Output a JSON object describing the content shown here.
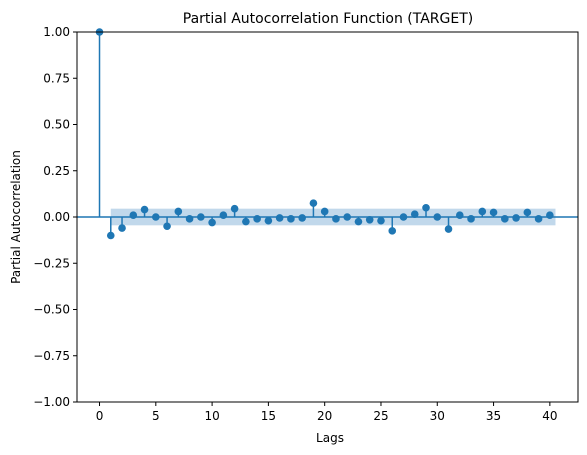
{
  "chart_data": {
    "type": "stem",
    "title": "Partial Autocorrelation Function (TARGET)",
    "xlabel": "Lags",
    "ylabel": "Partial Autocorrelation",
    "xlim": [
      -2,
      42.5
    ],
    "ylim": [
      -1.0,
      1.0
    ],
    "xticks": [
      0,
      5,
      10,
      15,
      20,
      25,
      30,
      35,
      40
    ],
    "yticks": [
      -1.0,
      -0.75,
      -0.5,
      -0.25,
      0.0,
      0.25,
      0.5,
      0.75,
      1.0
    ],
    "ytick_labels": [
      "−1.00",
      "−0.75",
      "−0.50",
      "−0.25",
      "0.00",
      "0.25",
      "0.50",
      "0.75",
      "1.00"
    ],
    "xtick_labels": [
      "0",
      "5",
      "10",
      "15",
      "20",
      "25",
      "30",
      "35",
      "40"
    ],
    "lags": [
      0,
      1,
      2,
      3,
      4,
      5,
      6,
      7,
      8,
      9,
      10,
      11,
      12,
      13,
      14,
      15,
      16,
      17,
      18,
      19,
      20,
      21,
      22,
      23,
      24,
      25,
      26,
      27,
      28,
      29,
      30,
      31,
      32,
      33,
      34,
      35,
      36,
      37,
      38,
      39,
      40
    ],
    "values": [
      1.0,
      -0.1,
      -0.06,
      0.01,
      0.04,
      0.0,
      -0.05,
      0.03,
      -0.01,
      0.0,
      -0.03,
      0.01,
      0.045,
      -0.025,
      -0.01,
      -0.02,
      -0.005,
      -0.01,
      -0.005,
      0.075,
      0.03,
      -0.01,
      0.0,
      -0.025,
      -0.015,
      -0.02,
      -0.075,
      0.0,
      0.015,
      0.05,
      0.0,
      -0.065,
      0.01,
      -0.01,
      0.03,
      0.025,
      -0.01,
      -0.005,
      0.025,
      -0.01,
      0.01
    ],
    "confidence_band": [
      -0.045,
      0.045
    ],
    "confidence_band_lags": [
      1,
      40.5
    ],
    "grid": false,
    "colors": {
      "stem": "#1f77b4",
      "band": "#a6c8e3",
      "zero_line": "#1f77b4",
      "axes": "#000000"
    }
  }
}
